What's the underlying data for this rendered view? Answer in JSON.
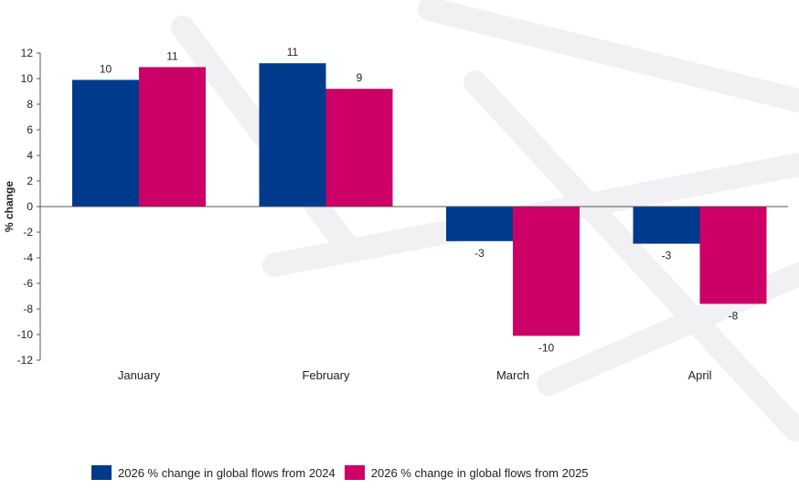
{
  "chart_data": {
    "type": "bar",
    "categories": [
      "January",
      "February",
      "March",
      "April"
    ],
    "series": [
      {
        "name": "2026 % change in global flows from 2024",
        "color": "#003a8c",
        "values": [
          9.9,
          11.2,
          -2.7,
          -2.9
        ],
        "labels": [
          "10",
          "11",
          "-3",
          "-3"
        ]
      },
      {
        "name": "2026 % change in global flows from 2025",
        "color": "#cc0066",
        "values": [
          10.9,
          9.2,
          -10.1,
          -7.6
        ],
        "labels": [
          "11",
          "9",
          "-10",
          "-8"
        ]
      }
    ],
    "ylabel": "% change",
    "ylim": [
      -12,
      12
    ],
    "yticks": [
      12,
      10,
      8,
      6,
      4,
      2,
      0,
      -2,
      -4,
      -6,
      -8,
      -10,
      -12
    ],
    "grid": false,
    "legend_position": "bottom"
  }
}
